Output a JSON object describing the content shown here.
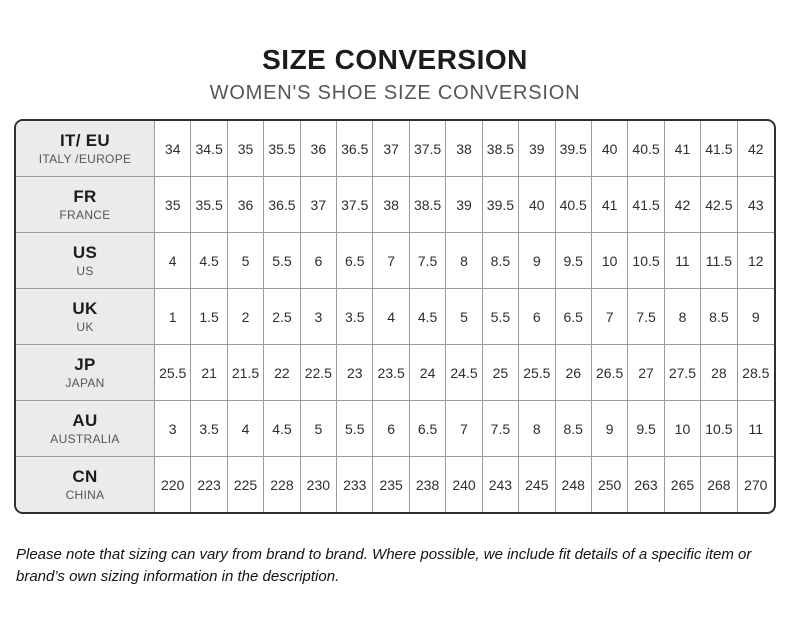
{
  "page": {
    "title": "SIZE CONVERSION",
    "subtitle": "WOMEN'S SHOE SIZE CONVERSION",
    "footnote": "Please note that sizing can vary from brand to brand. Where possible, we include fit details of a specific item or brand’s own sizing information in the description."
  },
  "colors": {
    "page_bg": "#ffffff",
    "title_text": "#1c1c1c",
    "subtitle_text": "#565656",
    "table_outer_border": "#2f2f2f",
    "table_grid_line": "#9a9a9a",
    "header_column_bg": "#ebebeb",
    "cell_text": "#2e2e2e",
    "region_name_text": "#555555"
  },
  "chart_data": {
    "type": "table",
    "title": "SIZE CONVERSION",
    "subtitle": "WOMEN'S SHOE SIZE CONVERSION",
    "columns_per_row": 17,
    "rows": [
      {
        "code": "IT/ EU",
        "region": "ITALY /EUROPE",
        "sizes": [
          "34",
          "34.5",
          "35",
          "35.5",
          "36",
          "36.5",
          "37",
          "37.5",
          "38",
          "38.5",
          "39",
          "39.5",
          "40",
          "40.5",
          "41",
          "41.5",
          "42"
        ]
      },
      {
        "code": "FR",
        "region": "FRANCE",
        "sizes": [
          "35",
          "35.5",
          "36",
          "36.5",
          "37",
          "37.5",
          "38",
          "38.5",
          "39",
          "39.5",
          "40",
          "40.5",
          "41",
          "41.5",
          "42",
          "42.5",
          "43"
        ]
      },
      {
        "code": "US",
        "region": "US",
        "sizes": [
          "4",
          "4.5",
          "5",
          "5.5",
          "6",
          "6.5",
          "7",
          "7.5",
          "8",
          "8.5",
          "9",
          "9.5",
          "10",
          "10.5",
          "11",
          "11.5",
          "12"
        ]
      },
      {
        "code": "UK",
        "region": "UK",
        "sizes": [
          "1",
          "1.5",
          "2",
          "2.5",
          "3",
          "3.5",
          "4",
          "4.5",
          "5",
          "5.5",
          "6",
          "6.5",
          "7",
          "7.5",
          "8",
          "8.5",
          "9"
        ]
      },
      {
        "code": "JP",
        "region": "JAPAN",
        "sizes": [
          "25.5",
          "21",
          "21.5",
          "22",
          "22.5",
          "23",
          "23.5",
          "24",
          "24.5",
          "25",
          "25.5",
          "26",
          "26.5",
          "27",
          "27.5",
          "28",
          "28.5"
        ]
      },
      {
        "code": "AU",
        "region": "AUSTRALIA",
        "sizes": [
          "3",
          "3.5",
          "4",
          "4.5",
          "5",
          "5.5",
          "6",
          "6.5",
          "7",
          "7.5",
          "8",
          "8.5",
          "9",
          "9.5",
          "10",
          "10.5",
          "11"
        ]
      },
      {
        "code": "CN",
        "region": "CHINA",
        "sizes": [
          "220",
          "223",
          "225",
          "228",
          "230",
          "233",
          "235",
          "238",
          "240",
          "243",
          "245",
          "248",
          "250",
          "263",
          "265",
          "268",
          "270"
        ]
      }
    ],
    "footnote": "Please note that sizing can vary from brand to brand. Where possible, we include fit details of a specific item or brand’s own sizing information in the description."
  }
}
